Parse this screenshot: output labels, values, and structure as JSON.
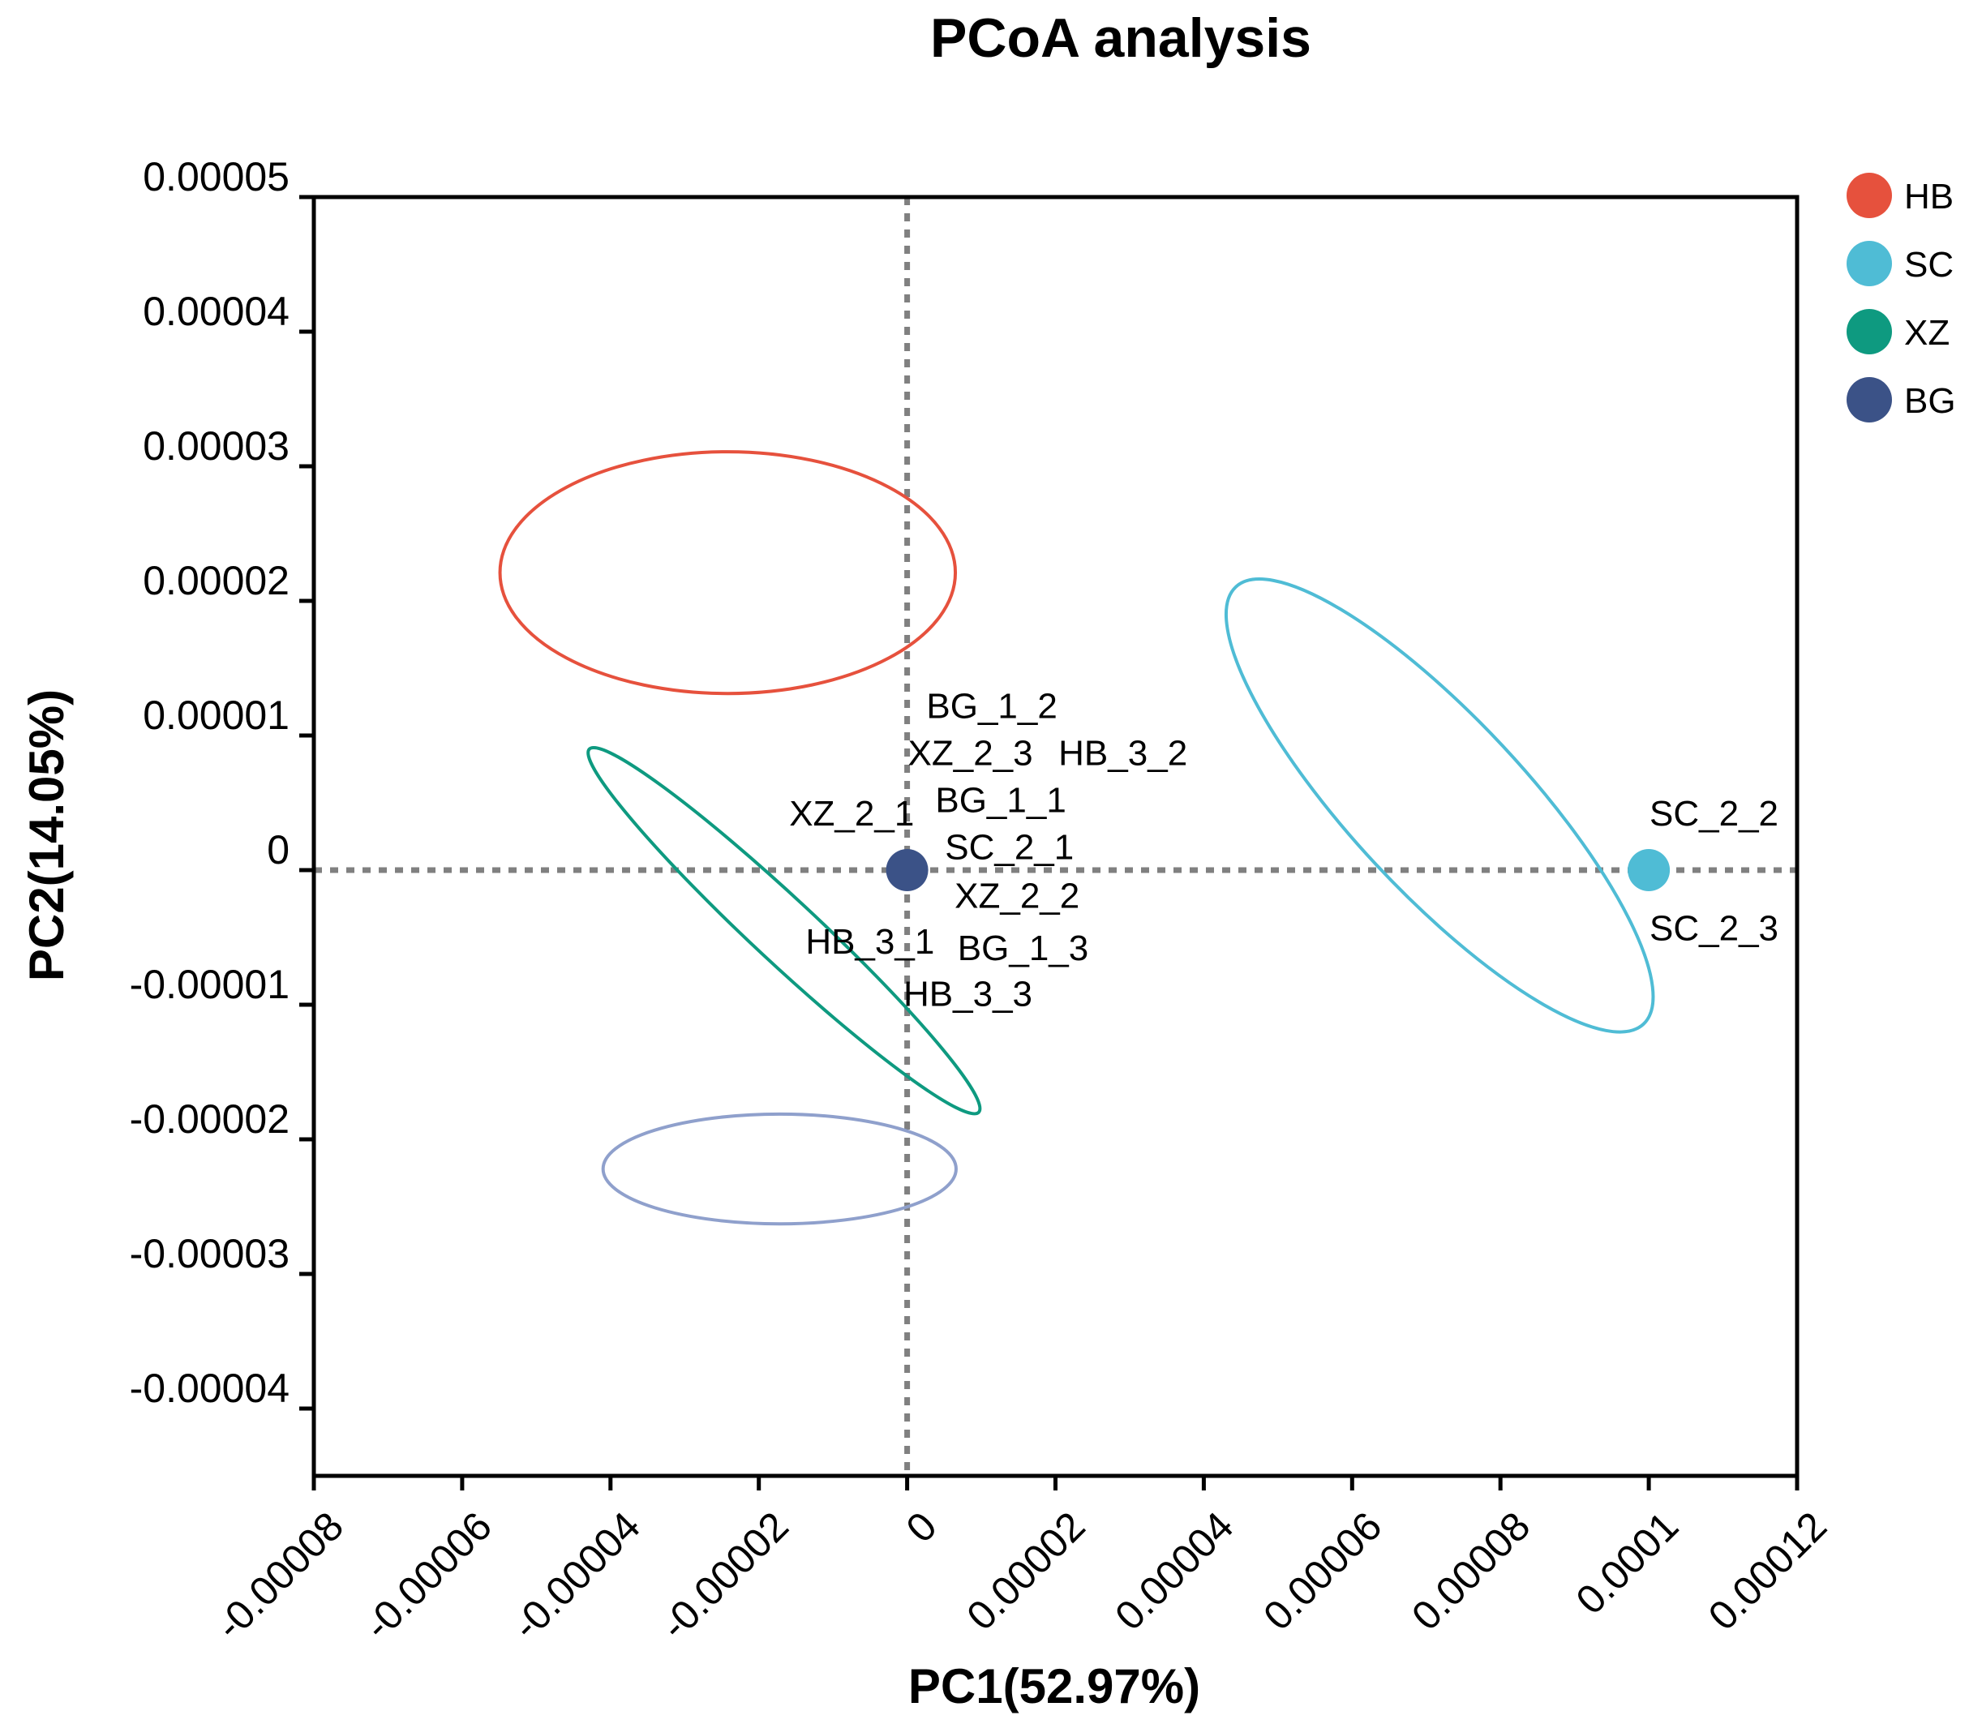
{
  "chart_data": {
    "type": "scatter",
    "title": "PCoA analysis",
    "xlabel": "PC1(52.97%)",
    "ylabel": "PC2(14.05%)",
    "xlim": [
      -8e-05,
      0.00012
    ],
    "ylim": [
      -4.5e-05,
      5e-05
    ],
    "x_ticks": [
      -8e-05,
      -6e-05,
      -4e-05,
      -2e-05,
      0,
      2e-05,
      4e-05,
      6e-05,
      8e-05,
      0.0001,
      0.00012
    ],
    "x_tick_labels": [
      "-0.00008",
      "-0.00006",
      "-0.00004",
      "-0.00002",
      "0",
      "0.00002",
      "0.00004",
      "0.00006",
      "0.00008",
      "0.0001",
      "0.00012"
    ],
    "y_ticks": [
      5e-05,
      4e-05,
      3e-05,
      2e-05,
      1e-05,
      0,
      -1e-05,
      -2e-05,
      -3e-05,
      -4e-05
    ],
    "y_tick_labels": [
      "0.00005",
      "0.00004",
      "0.00003",
      "0.00002",
      "0.00001",
      "0",
      "-0.00001",
      "-0.00002",
      "-0.00003",
      "-0.00004"
    ],
    "reference_lines": {
      "x": 0,
      "y": 0,
      "style": "dotted",
      "color": "#808080"
    },
    "grid": false,
    "legend_position": "right",
    "series": [
      {
        "name": "HB",
        "color": "#E6513D",
        "ellipse": {
          "cx": -2.42e-05,
          "cy": 2.21e-05,
          "rx": 3.07e-05,
          "ry": 1.63e-05,
          "angle": 0
        }
      },
      {
        "name": "SC",
        "color": "#4FBCD5",
        "ellipse": {
          "cx": 7.18e-05,
          "cy": 4.8e-06,
          "rx": 4.03e-05,
          "ry": 1.17e-05,
          "angle": 47
        }
      },
      {
        "name": "XZ",
        "color": "#0E9A80",
        "ellipse": {
          "cx": -1.66e-05,
          "cy": -4.5e-06,
          "rx": 3.59e-05,
          "ry": 4.3e-06,
          "angle": 43
        }
      },
      {
        "name": "BG",
        "color": "#3B5287",
        "ellipse": {
          "cx": -1.72e-05,
          "cy": -2.22e-05,
          "rx": 2.38e-05,
          "ry": 7.4e-06,
          "angle": 0,
          "stroke": "#8FA0CC"
        }
      }
    ],
    "points": [
      {
        "label": "BG_1_2",
        "x": 0,
        "y": 0,
        "group": "BG",
        "lx": 2.6e-06,
        "ly": 1.13e-05,
        "anchor": "start"
      },
      {
        "label": "XZ_2_3",
        "x": 0,
        "y": 0,
        "group": "XZ",
        "lx": 1e-07,
        "ly": 7.8e-06,
        "anchor": "start"
      },
      {
        "label": "HB_3_2",
        "x": 0,
        "y": 0,
        "group": "HB",
        "lx": 2.04e-05,
        "ly": 7.8e-06,
        "anchor": "start"
      },
      {
        "label": "BG_1_1",
        "x": 0,
        "y": 0,
        "group": "BG",
        "lx": 3.8e-06,
        "ly": 4.3e-06,
        "anchor": "start"
      },
      {
        "label": "XZ_2_1",
        "x": 0,
        "y": 0,
        "group": "XZ",
        "lx": -1.59e-05,
        "ly": 3.3e-06,
        "anchor": "start"
      },
      {
        "label": "SC_2_1",
        "x": 0,
        "y": 0,
        "group": "SC",
        "lx": 5.1e-06,
        "ly": 8e-07,
        "anchor": "start"
      },
      {
        "label": "XZ_2_2",
        "x": 0,
        "y": 0,
        "group": "XZ",
        "lx": 6.4e-06,
        "ly": -2.8e-06,
        "anchor": "start"
      },
      {
        "label": "HB_3_1",
        "x": 0,
        "y": 0,
        "group": "HB",
        "lx": -1.37e-05,
        "ly": -6.2e-06,
        "anchor": "start"
      },
      {
        "label": "BG_1_3",
        "x": 0,
        "y": 0,
        "group": "BG",
        "lx": 6.8e-06,
        "ly": -6.7e-06,
        "anchor": "start"
      },
      {
        "label": "HB_3_3",
        "x": 0,
        "y": 0,
        "group": "HB",
        "lx": -5e-07,
        "ly": -1.01e-05,
        "anchor": "start"
      },
      {
        "label": "SC_2_2",
        "x": 0.0001,
        "y": 0,
        "group": "SC",
        "lx": 0.0001001,
        "ly": 3.3e-06,
        "anchor": "start"
      },
      {
        "label": "SC_2_3",
        "x": 0.0001,
        "y": 0,
        "group": "SC",
        "lx": 0.0001001,
        "ly": -5.2e-06,
        "anchor": "start"
      }
    ],
    "markers": [
      {
        "x": 0,
        "y": 0,
        "group": "BG",
        "color": "#3B5287"
      },
      {
        "x": 0.0001,
        "y": 0,
        "group": "SC",
        "color": "#4FBCD5"
      }
    ]
  }
}
